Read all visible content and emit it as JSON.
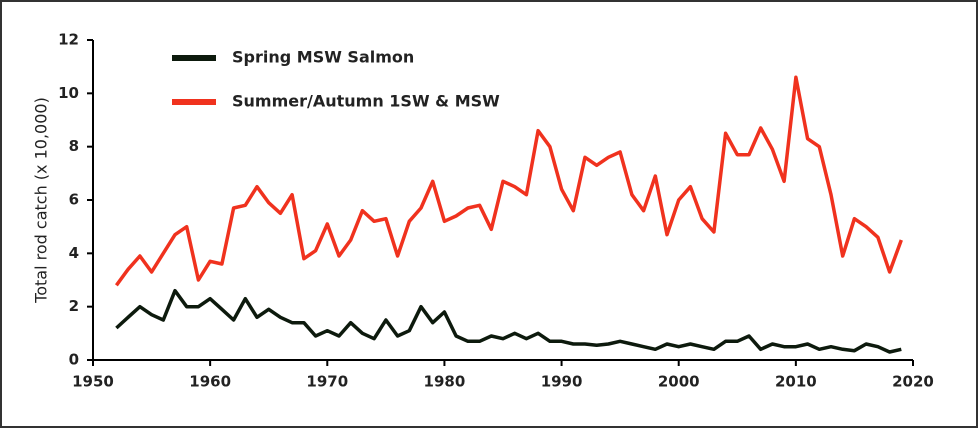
{
  "chart_data": {
    "type": "line",
    "y_label": "Total rod catch (x 10,000)",
    "x": [
      1952,
      1953,
      1954,
      1955,
      1956,
      1957,
      1958,
      1959,
      1960,
      1961,
      1962,
      1963,
      1964,
      1965,
      1966,
      1967,
      1968,
      1969,
      1970,
      1971,
      1972,
      1973,
      1974,
      1975,
      1976,
      1977,
      1978,
      1979,
      1980,
      1981,
      1982,
      1983,
      1984,
      1985,
      1986,
      1987,
      1988,
      1989,
      1990,
      1991,
      1992,
      1993,
      1994,
      1995,
      1996,
      1997,
      1998,
      1999,
      2000,
      2001,
      2002,
      2003,
      2004,
      2005,
      2006,
      2007,
      2008,
      2009,
      2010,
      2011,
      2012,
      2013,
      2014,
      2015,
      2016,
      2017,
      2018,
      2019
    ],
    "series": [
      {
        "name": "Spring MSW Salmon",
        "color": "#0d1a0d",
        "values": [
          1.2,
          1.6,
          2.0,
          1.7,
          1.5,
          2.6,
          2.0,
          2.0,
          2.3,
          1.9,
          1.5,
          2.3,
          1.6,
          1.9,
          1.6,
          1.4,
          1.4,
          0.9,
          1.1,
          0.9,
          1.4,
          1.0,
          0.8,
          1.5,
          0.9,
          1.1,
          2.0,
          1.4,
          1.8,
          0.9,
          0.7,
          0.7,
          0.9,
          0.8,
          1.0,
          0.8,
          1.0,
          0.7,
          0.7,
          0.6,
          0.6,
          0.55,
          0.6,
          0.7,
          0.6,
          0.5,
          0.4,
          0.6,
          0.5,
          0.6,
          0.5,
          0.4,
          0.7,
          0.7,
          0.9,
          0.4,
          0.6,
          0.5,
          0.5,
          0.6,
          0.4,
          0.5,
          0.4,
          0.35,
          0.6,
          0.5,
          0.3,
          0.4
        ]
      },
      {
        "name": "Summer/Autumn 1SW & MSW",
        "color": "#f0321e",
        "values": [
          2.8,
          3.4,
          3.9,
          3.3,
          4.0,
          4.7,
          5.0,
          3.0,
          3.7,
          3.6,
          5.7,
          5.8,
          6.5,
          5.9,
          5.5,
          6.2,
          3.8,
          4.1,
          5.1,
          3.9,
          4.5,
          5.6,
          5.2,
          5.3,
          3.9,
          5.2,
          5.7,
          6.7,
          5.2,
          5.4,
          5.7,
          5.8,
          4.9,
          6.7,
          6.5,
          6.2,
          8.6,
          8.0,
          6.4,
          5.6,
          7.6,
          7.3,
          7.6,
          7.8,
          6.2,
          5.6,
          6.9,
          4.7,
          6.0,
          6.5,
          5.3,
          4.8,
          8.5,
          7.7,
          7.7,
          8.7,
          7.9,
          6.7,
          10.6,
          8.3,
          8.0,
          6.2,
          3.9,
          5.3,
          5.0,
          4.6,
          3.3,
          4.5
        ]
      }
    ],
    "xlim": [
      1950,
      2020
    ],
    "xticks": [
      1950,
      1960,
      1970,
      1980,
      1990,
      2000,
      2010,
      2020
    ],
    "ylim": [
      0,
      12
    ],
    "yticks": [
      0,
      2,
      4,
      6,
      8,
      10,
      12
    ],
    "legend_position": "upper left"
  }
}
